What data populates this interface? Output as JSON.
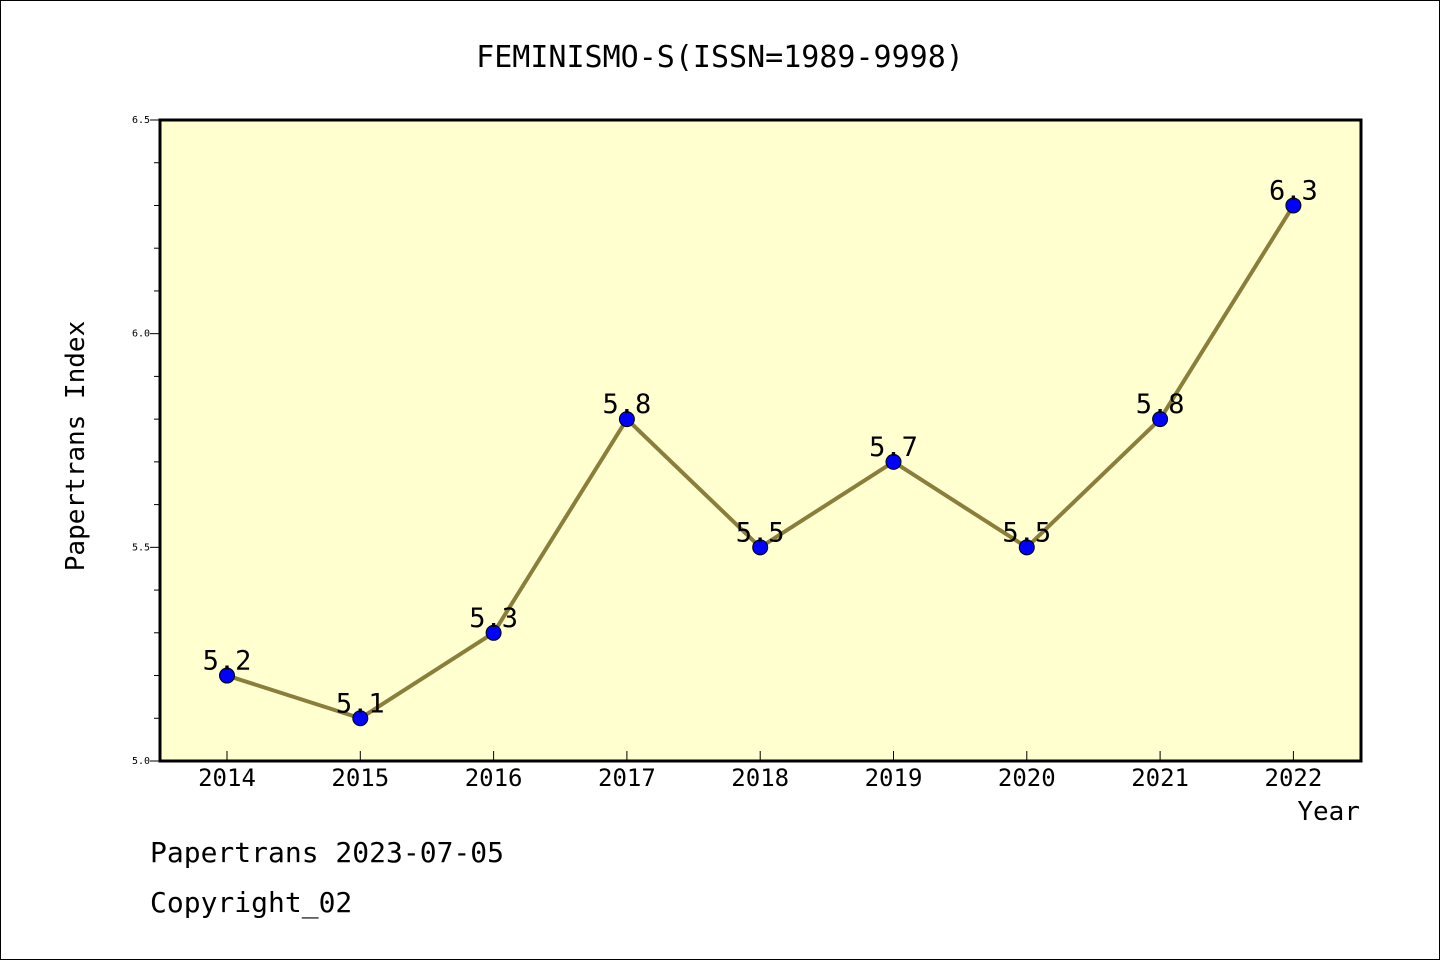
{
  "chart_data": {
    "type": "line",
    "title": "FEMINISMO-S(ISSN=1989-9998)",
    "xlabel": "Year",
    "ylabel": "Papertrans Index",
    "x": [
      "2014",
      "2015",
      "2016",
      "2017",
      "2018",
      "2019",
      "2020",
      "2021",
      "2022"
    ],
    "series": [
      {
        "values": [
          5.2,
          5.1,
          5.3,
          5.8,
          5.5,
          5.7,
          5.5,
          5.8,
          6.3
        ],
        "labels": [
          "5.2",
          "5.1",
          "5.3",
          "5.8",
          "5.5",
          "5.7",
          "5.5",
          "5.8",
          "6.3"
        ]
      }
    ],
    "ylim": [
      5.0,
      6.5
    ],
    "yticks": [
      "5.0",
      "5.5",
      "6.0",
      "6.5"
    ],
    "grid": false,
    "colors": {
      "line": "#8b7d3a",
      "marker": "#0000ff",
      "plot_bg": "#ffffd0"
    }
  },
  "footer": {
    "date_line": "Papertrans 2023-07-05",
    "copyright": "Copyright_02"
  }
}
